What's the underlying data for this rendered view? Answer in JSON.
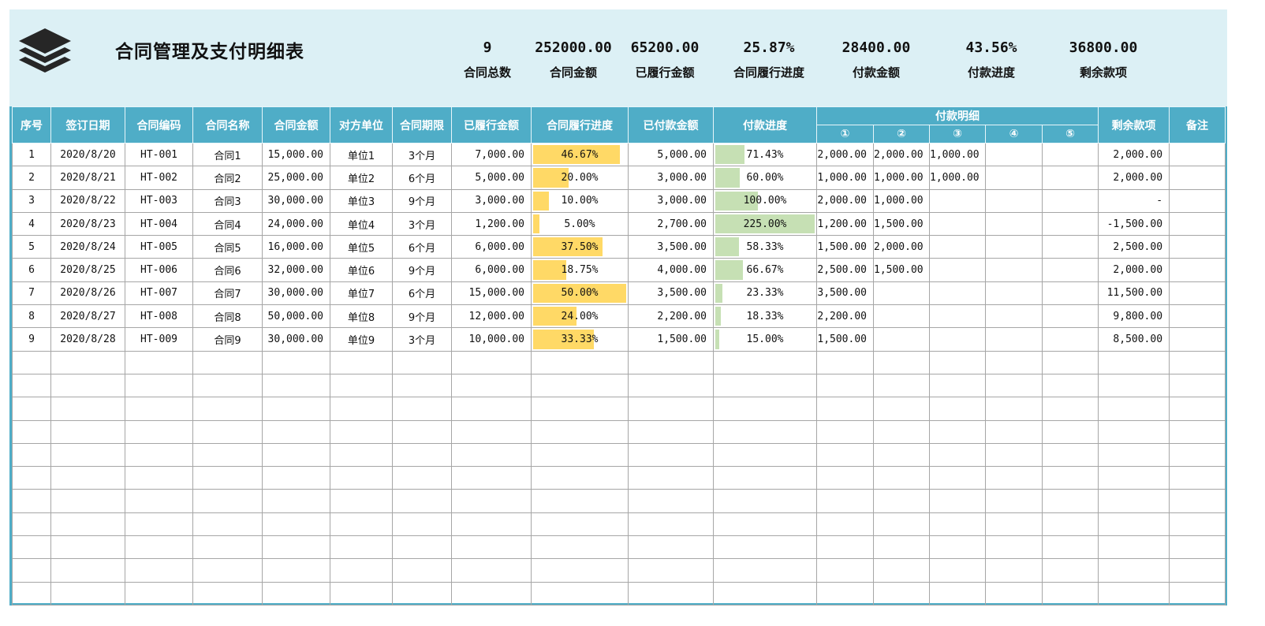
{
  "header": {
    "title": "合同管理及支付明细表",
    "logo_icon": "layers-icon",
    "kpis": [
      {
        "value": "9",
        "label": "合同总数"
      },
      {
        "value": "252000.00",
        "label": "合同金额"
      },
      {
        "value": "65200.00",
        "label": "已履行金额"
      },
      {
        "value": "25.87%",
        "label": "合同履行进度"
      },
      {
        "value": "28400.00",
        "label": "付款金额"
      },
      {
        "value": "43.56%",
        "label": "付款进度"
      },
      {
        "value": "36800.00",
        "label": "剩余款项"
      }
    ]
  },
  "table": {
    "columns": [
      "序号",
      "签订日期",
      "合同编码",
      "合同名称",
      "合同金额",
      "对方单位",
      "合同期限",
      "已履行金额",
      "合同履行进度",
      "已付款金额",
      "付款进度",
      "付款明细",
      "剩余款项",
      "备注"
    ],
    "payment_sub_columns": [
      "①",
      "②",
      "③",
      "④",
      "⑤"
    ],
    "colors": {
      "header_bg": "#4fadc7",
      "progress_bar": "#ffd966",
      "payment_bar": "#c6e0b4"
    },
    "rows": [
      {
        "no": "1",
        "date": "2020/8/20",
        "code": "HT-001",
        "name": "合同1",
        "amount": "15,000.00",
        "party": "单位1",
        "term": "3个月",
        "performed": "7,000.00",
        "perf_pct": "46.67%",
        "perf_val": 46.67,
        "paid": "5,000.00",
        "pay_pct": "71.43%",
        "pay_val": 71.43,
        "p1": "2,000.00",
        "p2": "2,000.00",
        "p3": "1,000.00",
        "p4": "",
        "p5": "",
        "remain": "2,000.00",
        "note": ""
      },
      {
        "no": "2",
        "date": "2020/8/21",
        "code": "HT-002",
        "name": "合同2",
        "amount": "25,000.00",
        "party": "单位2",
        "term": "6个月",
        "performed": "5,000.00",
        "perf_pct": "20.00%",
        "perf_val": 20.0,
        "paid": "3,000.00",
        "pay_pct": "60.00%",
        "pay_val": 60.0,
        "p1": "1,000.00",
        "p2": "1,000.00",
        "p3": "1,000.00",
        "p4": "",
        "p5": "",
        "remain": "2,000.00",
        "note": ""
      },
      {
        "no": "3",
        "date": "2020/8/22",
        "code": "HT-003",
        "name": "合同3",
        "amount": "30,000.00",
        "party": "单位3",
        "term": "9个月",
        "performed": "3,000.00",
        "perf_pct": "10.00%",
        "perf_val": 10.0,
        "paid": "3,000.00",
        "pay_pct": "100.00%",
        "pay_val": 100.0,
        "p1": "2,000.00",
        "p2": "1,000.00",
        "p3": "",
        "p4": "",
        "p5": "",
        "remain": "-",
        "note": ""
      },
      {
        "no": "4",
        "date": "2020/8/23",
        "code": "HT-004",
        "name": "合同4",
        "amount": "24,000.00",
        "party": "单位4",
        "term": "3个月",
        "performed": "1,200.00",
        "perf_pct": "5.00%",
        "perf_val": 5.0,
        "paid": "2,700.00",
        "pay_pct": "225.00%",
        "pay_val": 225.0,
        "p1": "1,200.00",
        "p2": "1,500.00",
        "p3": "",
        "p4": "",
        "p5": "",
        "remain": "-1,500.00",
        "note": ""
      },
      {
        "no": "5",
        "date": "2020/8/24",
        "code": "HT-005",
        "name": "合同5",
        "amount": "16,000.00",
        "party": "单位5",
        "term": "6个月",
        "performed": "6,000.00",
        "perf_pct": "37.50%",
        "perf_val": 37.5,
        "paid": "3,500.00",
        "pay_pct": "58.33%",
        "pay_val": 58.33,
        "p1": "1,500.00",
        "p2": "2,000.00",
        "p3": "",
        "p4": "",
        "p5": "",
        "remain": "2,500.00",
        "note": ""
      },
      {
        "no": "6",
        "date": "2020/8/25",
        "code": "HT-006",
        "name": "合同6",
        "amount": "32,000.00",
        "party": "单位6",
        "term": "9个月",
        "performed": "6,000.00",
        "perf_pct": "18.75%",
        "perf_val": 18.75,
        "paid": "4,000.00",
        "pay_pct": "66.67%",
        "pay_val": 66.67,
        "p1": "2,500.00",
        "p2": "1,500.00",
        "p3": "",
        "p4": "",
        "p5": "",
        "remain": "2,000.00",
        "note": ""
      },
      {
        "no": "7",
        "date": "2020/8/26",
        "code": "HT-007",
        "name": "合同7",
        "amount": "30,000.00",
        "party": "单位7",
        "term": "6个月",
        "performed": "15,000.00",
        "perf_pct": "50.00%",
        "perf_val": 50.0,
        "paid": "3,500.00",
        "pay_pct": "23.33%",
        "pay_val": 23.33,
        "p1": "3,500.00",
        "p2": "",
        "p3": "",
        "p4": "",
        "p5": "",
        "remain": "11,500.00",
        "note": ""
      },
      {
        "no": "8",
        "date": "2020/8/27",
        "code": "HT-008",
        "name": "合同8",
        "amount": "50,000.00",
        "party": "单位8",
        "term": "9个月",
        "performed": "12,000.00",
        "perf_pct": "24.00%",
        "perf_val": 24.0,
        "paid": "2,200.00",
        "pay_pct": "18.33%",
        "pay_val": 18.33,
        "p1": "2,200.00",
        "p2": "",
        "p3": "",
        "p4": "",
        "p5": "",
        "remain": "9,800.00",
        "note": ""
      },
      {
        "no": "9",
        "date": "2020/8/28",
        "code": "HT-009",
        "name": "合同9",
        "amount": "30,000.00",
        "party": "单位9",
        "term": "3个月",
        "performed": "10,000.00",
        "perf_pct": "33.33%",
        "perf_val": 33.33,
        "paid": "1,500.00",
        "pay_pct": "15.00%",
        "pay_val": 15.0,
        "p1": "1,500.00",
        "p2": "",
        "p3": "",
        "p4": "",
        "p5": "",
        "remain": "8,500.00",
        "note": ""
      }
    ],
    "empty_rows": 11
  }
}
